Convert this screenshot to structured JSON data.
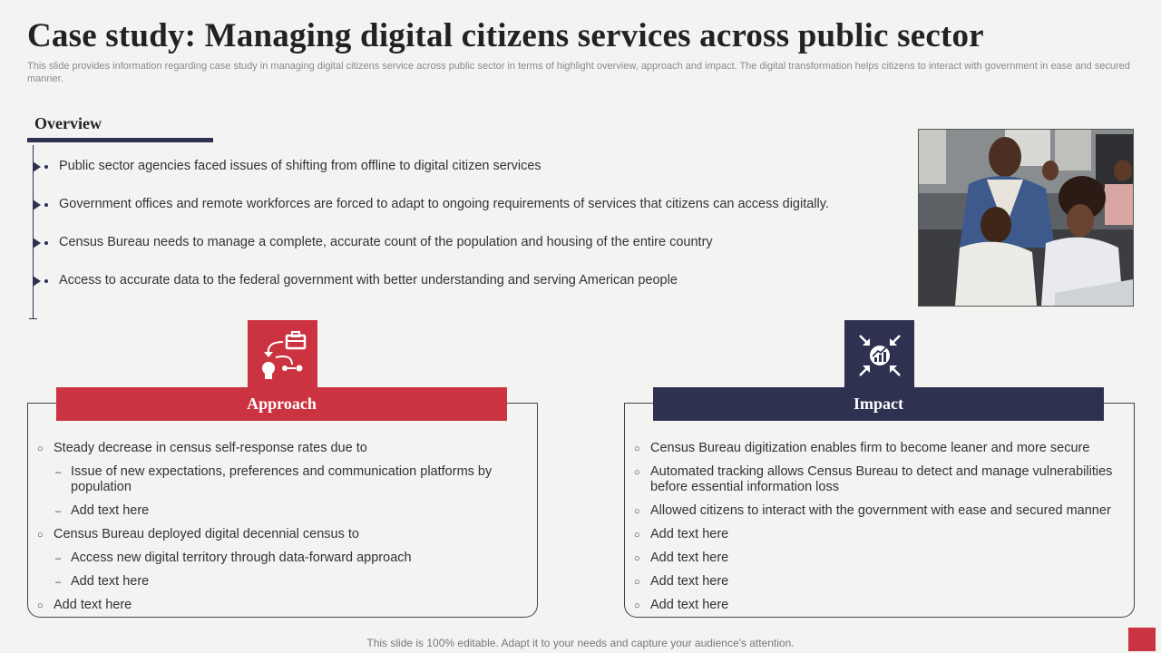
{
  "title": "Case study: Managing digital citizens services across public sector",
  "subtitle": "This slide provides information regarding case study in managing digital citizens service across public sector in terms of highlight overview, approach and impact. The digital transformation helps citizens to interact with government in ease and secured manner.",
  "overview": {
    "heading": "Overview",
    "items": [
      "Public sector agencies faced issues of shifting from offline to digital citizen services",
      "Government offices and remote workforces are forced to adapt to ongoing requirements of services that citizens can access digitally.",
      "Census Bureau needs to manage a complete, accurate count of the population and housing of the entire country",
      "Access to accurate data to the federal government with better understanding and serving American people"
    ]
  },
  "approach": {
    "heading": "Approach",
    "icon": "workflow-briefcase-bulb-icon",
    "items": [
      {
        "level": 1,
        "text": "Steady decrease in census self-response rates due to"
      },
      {
        "level": 2,
        "text": "Issue of new expectations, preferences and communication platforms by population"
      },
      {
        "level": 2,
        "text": "Add text here"
      },
      {
        "level": 1,
        "text": "Census Bureau deployed digital decennial census to"
      },
      {
        "level": 2,
        "text": "Access new digital territory through data-forward approach"
      },
      {
        "level": 2,
        "text": "Add text here"
      },
      {
        "level": 1,
        "text": "Add text here"
      }
    ]
  },
  "impact": {
    "heading": "Impact",
    "icon": "growth-chart-arrows-icon",
    "items": [
      "Census Bureau digitization enables firm to become leaner and more secure",
      "Automated tracking allows Census Bureau to detect and manage vulnerabilities before essential information loss",
      "Allowed citizens to interact with the government with ease and secured manner",
      "Add text here",
      "Add text here",
      "Add text here",
      "Add text here"
    ]
  },
  "footer": "This slide is 100% editable. Adapt it to your needs and capture your audience's attention.",
  "colors": {
    "accent_red": "#cc3340",
    "navy": "#2e3250",
    "background": "#f3f3f1"
  }
}
